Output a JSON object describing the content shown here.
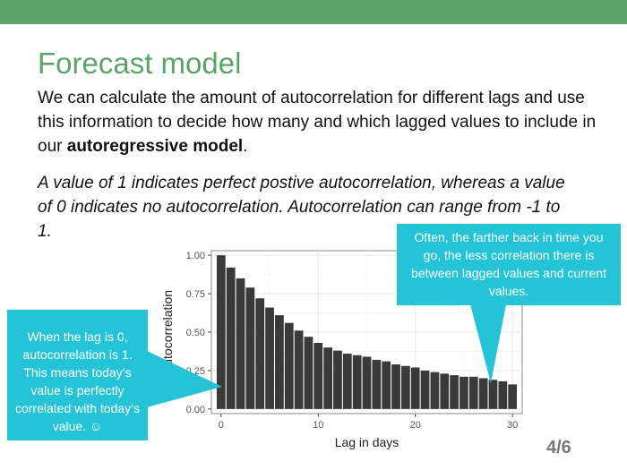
{
  "slide": {
    "title": "Forecast model",
    "para_part1": "We can calculate the amount of autocorrelation for different lags and use this information to decide how many and which lagged values to include in our ",
    "para_bold": "autoregressive model",
    "para_end": ".",
    "italic_text": "A value of 1 indicates perfect postive autocorrelation, whereas a value of 0 indicates no autocorrelation. Autocorrelation can range from -1 to 1.",
    "callout_right": "Often, the farther back in time you go, the less correlation there is between lagged values and current values.",
    "callout_left": "When the lag is 0, autocorrelation is 1. This means today’s value is perfectly correlated with today’s value. ☺",
    "page_number": "4/6",
    "colors": {
      "accent": "#5ba36a",
      "callout": "#24c3d6",
      "bar": "#3a3a3a"
    }
  },
  "chart_data": {
    "type": "bar",
    "xlabel": "Lag in days",
    "ylabel": "Autocorrelation",
    "x": [
      0,
      1,
      2,
      3,
      4,
      5,
      6,
      7,
      8,
      9,
      10,
      11,
      12,
      13,
      14,
      15,
      16,
      17,
      18,
      19,
      20,
      21,
      22,
      23,
      24,
      25,
      26,
      27,
      28,
      29,
      30
    ],
    "values": [
      1.0,
      0.92,
      0.85,
      0.79,
      0.72,
      0.66,
      0.61,
      0.56,
      0.51,
      0.47,
      0.43,
      0.4,
      0.38,
      0.36,
      0.35,
      0.34,
      0.32,
      0.31,
      0.29,
      0.28,
      0.27,
      0.25,
      0.24,
      0.23,
      0.22,
      0.21,
      0.21,
      0.2,
      0.19,
      0.18,
      0.16
    ],
    "xlim": [
      -1,
      31
    ],
    "ylim": [
      -0.03,
      1.03
    ],
    "xticks": [
      0,
      10,
      20,
      30
    ],
    "yticks": [
      0.0,
      0.25,
      0.5,
      0.75,
      1.0
    ],
    "ytick_labels": [
      "0.00",
      "0.25",
      "0.50",
      "0.75",
      "1.00"
    ],
    "grid": true
  }
}
